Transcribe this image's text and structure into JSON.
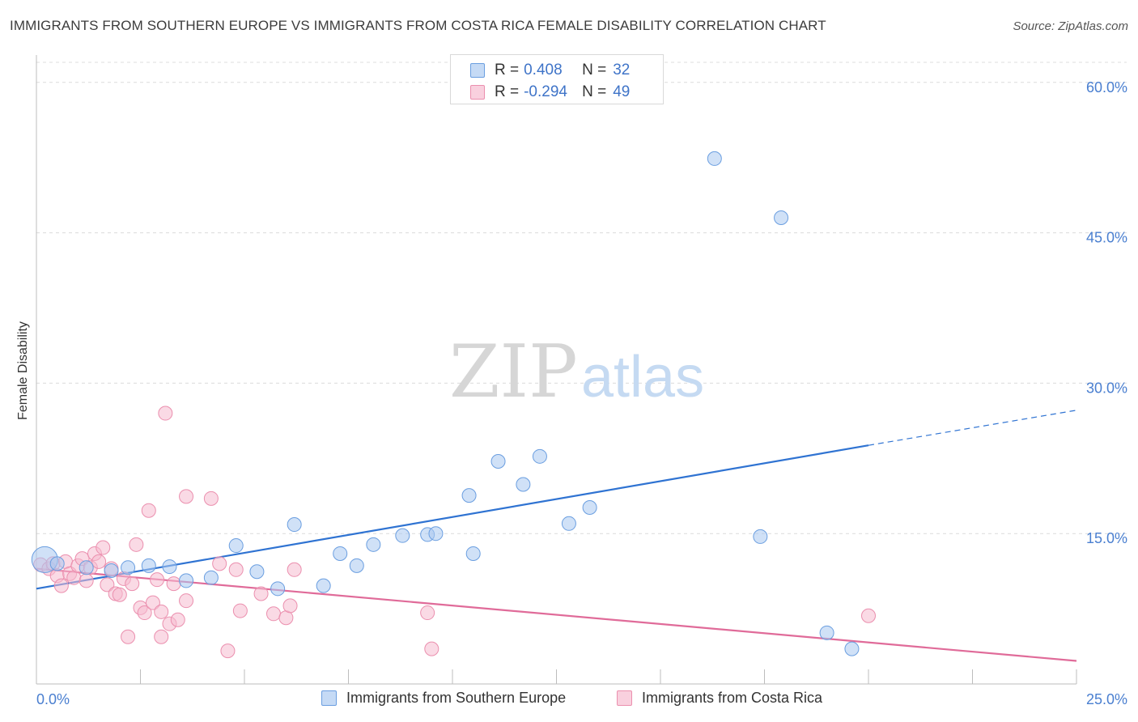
{
  "title": "IMMIGRANTS FROM SOUTHERN EUROPE VS IMMIGRANTS FROM COSTA RICA FEMALE DISABILITY CORRELATION CHART",
  "source": "Source: ZipAtlas.com",
  "watermark": {
    "zip": "ZIP",
    "atlas": "atlas"
  },
  "legend_top": {
    "rows": [
      {
        "r_label": "R =",
        "r_value": "0.408",
        "n_label": "N =",
        "n_value": "32"
      },
      {
        "r_label": "R =",
        "r_value": "-0.294",
        "n_label": "N =",
        "n_value": "49"
      }
    ]
  },
  "colors": {
    "blue_fill": "#aac8f0",
    "blue_stroke": "#6a9ee0",
    "blue_line": "#2f73d2",
    "pink_fill": "#f6bcd0",
    "pink_stroke": "#eb8fae",
    "pink_line": "#e06b99",
    "grid": "#dcdcdc",
    "tick_text": "#4a7fd0"
  },
  "chart_data": {
    "type": "scatter",
    "title": "IMMIGRANTS FROM SOUTHERN EUROPE VS IMMIGRANTS FROM COSTA RICA FEMALE DISABILITY CORRELATION CHART",
    "xlabel": "",
    "ylabel": "Female Disability",
    "xlim": [
      0,
      25
    ],
    "ylim": [
      0,
      60
    ],
    "x_tick_labels": [
      "0.0%",
      "25.0%"
    ],
    "y_ticks": [
      15,
      30,
      45,
      60
    ],
    "y_tick_labels": [
      "15.0%",
      "30.0%",
      "45.0%",
      "60.0%"
    ],
    "grid": true,
    "legend_position": "bottom",
    "series": [
      {
        "name": "Immigrants from Southern Europe",
        "color": "blue",
        "R": 0.408,
        "N": 32,
        "points": [
          [
            0.2,
            12.4
          ],
          [
            1.2,
            11.6
          ],
          [
            1.8,
            11.3
          ],
          [
            2.2,
            11.6
          ],
          [
            2.7,
            11.8
          ],
          [
            3.2,
            11.7
          ],
          [
            3.6,
            10.3
          ],
          [
            4.2,
            10.6
          ],
          [
            4.8,
            13.8
          ],
          [
            5.3,
            11.2
          ],
          [
            5.8,
            9.5
          ],
          [
            6.2,
            15.9
          ],
          [
            6.9,
            9.8
          ],
          [
            7.3,
            13.0
          ],
          [
            7.7,
            11.8
          ],
          [
            8.1,
            13.9
          ],
          [
            8.8,
            14.8
          ],
          [
            9.4,
            14.9
          ],
          [
            9.6,
            15.0
          ],
          [
            10.5,
            13.0
          ],
          [
            10.4,
            18.8
          ],
          [
            11.1,
            22.2
          ],
          [
            11.7,
            19.9
          ],
          [
            12.1,
            22.7
          ],
          [
            12.8,
            16.0
          ],
          [
            13.3,
            17.6
          ],
          [
            16.3,
            52.4
          ],
          [
            17.4,
            14.7
          ],
          [
            17.9,
            46.5
          ],
          [
            19.0,
            5.1
          ],
          [
            19.6,
            3.5
          ],
          [
            0.5,
            12.0
          ]
        ],
        "trend": {
          "x": [
            0,
            20.0
          ],
          "y": [
            9.5,
            23.8
          ],
          "dashed_to": [
            25,
            27.3
          ]
        }
      },
      {
        "name": "Immigrants from Costa Rica",
        "color": "pink",
        "R": -0.294,
        "N": 49,
        "points": [
          [
            0.1,
            11.9
          ],
          [
            0.3,
            11.5
          ],
          [
            0.4,
            12.0
          ],
          [
            0.5,
            10.8
          ],
          [
            0.6,
            9.8
          ],
          [
            0.7,
            12.2
          ],
          [
            0.8,
            11.0
          ],
          [
            0.9,
            10.6
          ],
          [
            1.0,
            11.8
          ],
          [
            1.1,
            12.5
          ],
          [
            1.2,
            10.3
          ],
          [
            1.3,
            11.6
          ],
          [
            1.4,
            13.0
          ],
          [
            1.5,
            12.2
          ],
          [
            1.6,
            13.6
          ],
          [
            1.7,
            9.9
          ],
          [
            1.8,
            11.5
          ],
          [
            1.9,
            9.0
          ],
          [
            2.0,
            8.9
          ],
          [
            2.1,
            10.5
          ],
          [
            2.2,
            4.7
          ],
          [
            2.3,
            10.0
          ],
          [
            2.4,
            13.9
          ],
          [
            2.5,
            7.6
          ],
          [
            2.6,
            7.1
          ],
          [
            2.7,
            17.3
          ],
          [
            2.8,
            8.1
          ],
          [
            2.9,
            10.4
          ],
          [
            3.0,
            4.7
          ],
          [
            3.1,
            27.0
          ],
          [
            3.2,
            6.0
          ],
          [
            3.3,
            10.0
          ],
          [
            3.4,
            6.4
          ],
          [
            3.6,
            8.3
          ],
          [
            3.6,
            18.7
          ],
          [
            4.2,
            18.5
          ],
          [
            4.4,
            12.0
          ],
          [
            4.6,
            3.3
          ],
          [
            4.8,
            11.4
          ],
          [
            4.9,
            7.3
          ],
          [
            5.4,
            9.0
          ],
          [
            5.7,
            7.0
          ],
          [
            6.0,
            6.6
          ],
          [
            6.1,
            7.8
          ],
          [
            6.2,
            11.4
          ],
          [
            9.4,
            7.1
          ],
          [
            9.5,
            3.5
          ],
          [
            20.0,
            6.8
          ],
          [
            3.0,
            7.2
          ]
        ],
        "trend": {
          "x": [
            0,
            25
          ],
          "y": [
            11.5,
            2.3
          ]
        }
      }
    ]
  },
  "legend_bottom": {
    "items": [
      {
        "label": "Immigrants from Southern Europe"
      },
      {
        "label": "Immigrants from Costa Rica"
      }
    ]
  }
}
